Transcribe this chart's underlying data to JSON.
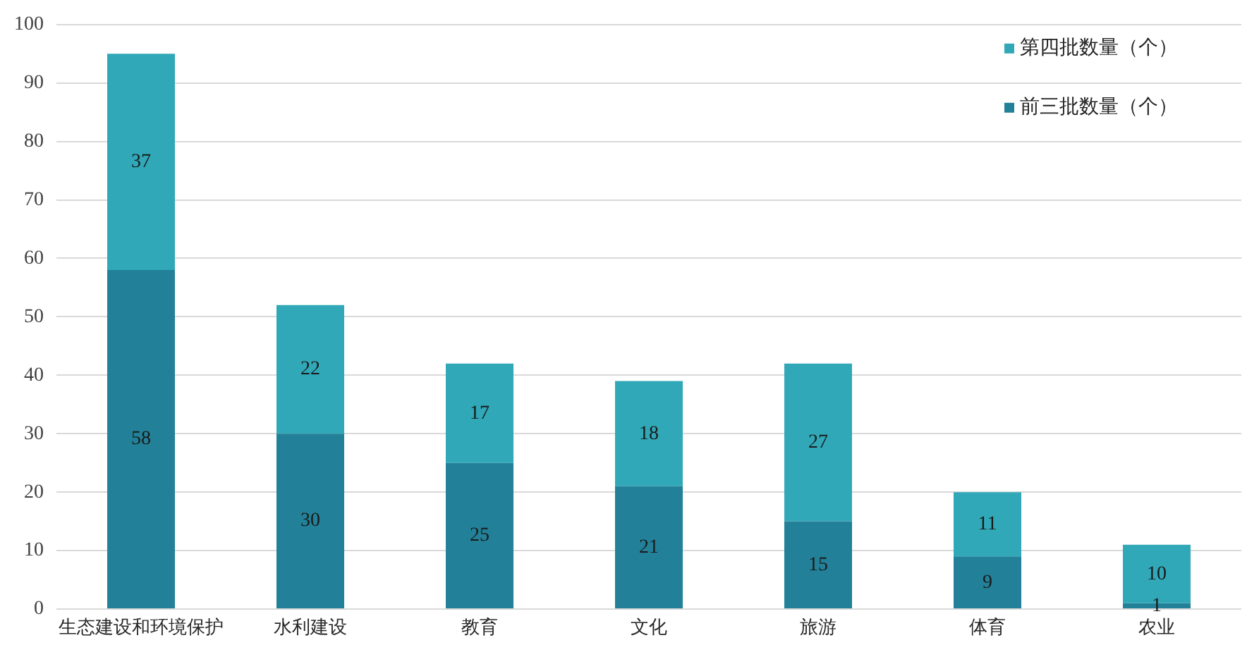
{
  "chart_data": {
    "type": "bar",
    "stacked": true,
    "categories": [
      "生态建设和环境保护",
      "水利建设",
      "教育",
      "文化",
      "旅游",
      "体育",
      "农业"
    ],
    "series": [
      {
        "name": "前三批数量（个）",
        "color": "#228198",
        "values": [
          58,
          30,
          25,
          21,
          15,
          9,
          1
        ]
      },
      {
        "name": "第四批数量（个）",
        "color": "#31a8b8",
        "values": [
          37,
          22,
          17,
          18,
          27,
          11,
          10
        ]
      }
    ],
    "ylim": [
      0,
      100
    ],
    "yticks": [
      0,
      10,
      20,
      30,
      40,
      50,
      60,
      70,
      80,
      90,
      100
    ],
    "grid": "y",
    "legend": "top right",
    "data_labels": true
  }
}
